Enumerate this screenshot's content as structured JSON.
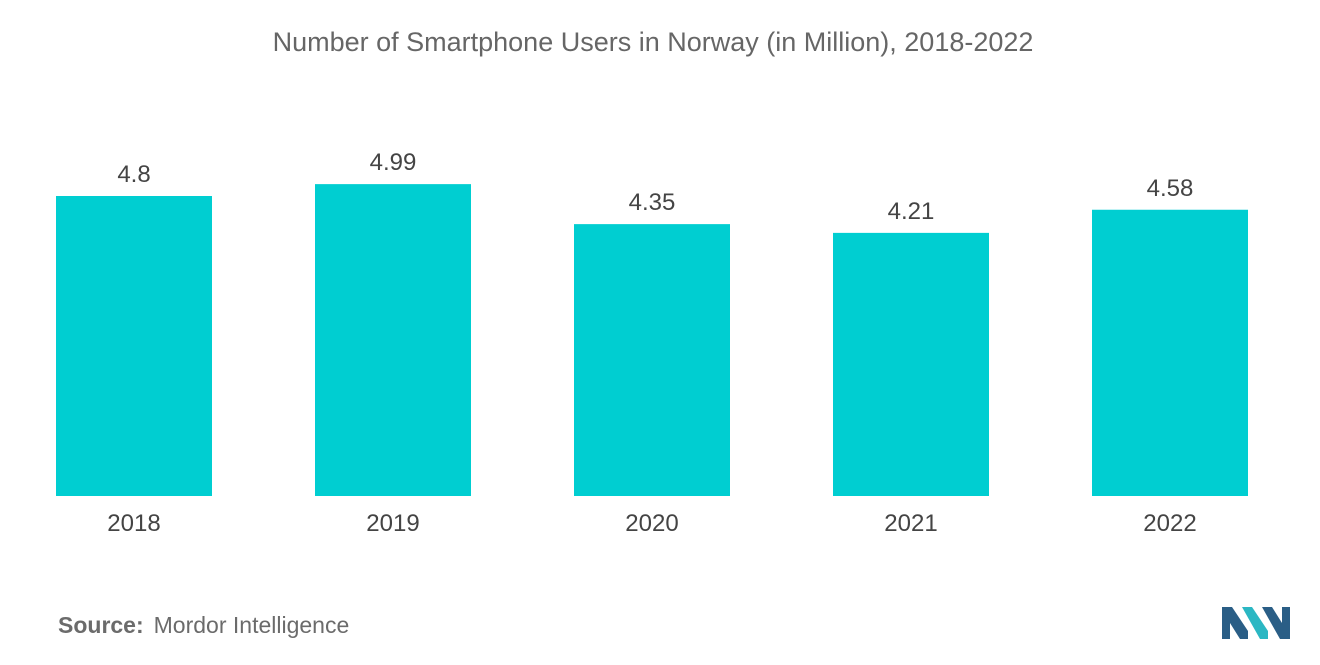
{
  "chart_data": {
    "type": "bar",
    "title": "Number of Smartphone Users in Norway (in Million), 2018-2022",
    "categories": [
      "2018",
      "2019",
      "2020",
      "2021",
      "2022"
    ],
    "values": [
      4.8,
      4.99,
      4.35,
      4.21,
      4.58
    ],
    "value_labels": [
      "4.8",
      "4.99",
      "4.35",
      "4.21",
      "4.58"
    ],
    "xlabel": "",
    "ylabel": "",
    "ylim": [
      0,
      5
    ],
    "grid": false,
    "bar_color": "#00CED1"
  },
  "source": {
    "label": "Source:",
    "name": "Mordor Intelligence"
  },
  "logo": {
    "icon": "mordor-intelligence-logo-icon",
    "colors": [
      "#2A5E86",
      "#2BB7C3"
    ]
  }
}
